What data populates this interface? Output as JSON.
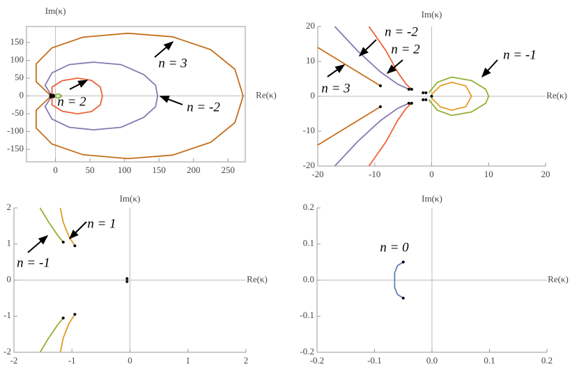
{
  "chart_data": [
    {
      "type": "line",
      "xlabel": "Re(κ)",
      "ylabel": "Im(κ)",
      "xlim": [
        -42,
        275
      ],
      "ylim": [
        -185,
        195
      ],
      "xticks": [
        0,
        50,
        100,
        150,
        200,
        250
      ],
      "yticks": [
        -150,
        -100,
        -50,
        0,
        50,
        100,
        150
      ],
      "annotations": [
        "n = 3",
        "n = 2",
        "n = -2"
      ],
      "series": [
        {
          "color": "#c56e1a",
          "x": [
            -8,
            -28,
            -28,
            -5,
            40,
            105,
            170,
            225,
            260,
            272,
            260,
            225,
            170,
            105,
            40,
            -5,
            -28,
            -28,
            -8
          ],
          "values": [
            3,
            40,
            90,
            135,
            165,
            176,
            166,
            130,
            75,
            0,
            -75,
            -130,
            -166,
            -176,
            -165,
            -135,
            -90,
            -40,
            -3
          ]
        },
        {
          "color": "#8778b3",
          "x": [
            -6,
            -15,
            -5,
            20,
            55,
            95,
            128,
            145,
            148,
            145,
            128,
            95,
            55,
            20,
            -5,
            -15,
            -6
          ],
          "values": [
            2,
            30,
            65,
            88,
            95,
            88,
            60,
            30,
            0,
            -30,
            -60,
            -88,
            -95,
            -88,
            -65,
            -30,
            -2
          ]
        },
        {
          "color": "#eb6235",
          "x": [
            -5,
            -5,
            10,
            32,
            52,
            65,
            68,
            65,
            52,
            32,
            10,
            -5,
            -5
          ],
          "values": [
            2,
            25,
            43,
            50,
            44,
            25,
            0,
            -25,
            -44,
            -50,
            -43,
            -25,
            -2
          ]
        },
        {
          "color": "#8fb032",
          "x": [
            -2,
            2,
            6,
            9,
            6,
            2,
            -2
          ],
          "values": [
            1,
            5,
            5,
            0,
            -5,
            -5,
            -1
          ]
        }
      ],
      "points": {
        "color": "#000000",
        "x": [
          -7,
          -7,
          -3,
          -3
        ],
        "values": [
          3,
          -3,
          2,
          -2
        ]
      }
    },
    {
      "type": "line",
      "xlabel": "Re(κ)",
      "ylabel": "Im(κ)",
      "xlim": [
        -20,
        20
      ],
      "ylim": [
        -20,
        20
      ],
      "xticks": [
        -20,
        -10,
        0,
        10,
        20
      ],
      "yticks": [
        -20,
        -10,
        0,
        10,
        20
      ],
      "annotations": [
        "n = -2",
        "n = 2",
        "n = 3",
        "n = -1"
      ],
      "series": [
        {
          "color": "#c56e1a",
          "x": [
            -20,
            -16,
            -12,
            -9,
            null,
            -20,
            -16,
            -12,
            -9
          ],
          "values": [
            14,
            10,
            6,
            3,
            null,
            -14,
            -10,
            -6,
            -3
          ]
        },
        {
          "color": "#8778b3",
          "x": [
            -17,
            -13,
            -9,
            -6,
            -4,
            null,
            -17,
            -13,
            -9,
            -6,
            -4
          ],
          "values": [
            20,
            13,
            7,
            3.5,
            2,
            null,
            -20,
            -13,
            -7,
            -3.5,
            -2
          ]
        },
        {
          "color": "#eb6235",
          "x": [
            -11,
            -8,
            -6,
            -4.5,
            -3.5,
            null,
            -11,
            -8,
            -6,
            -4.5,
            -3.5
          ],
          "values": [
            20,
            13,
            7,
            3.5,
            2,
            null,
            -20,
            -13,
            -7,
            -3.5,
            -2
          ]
        },
        {
          "color": "#8fb032",
          "x": [
            -0.5,
            1,
            3.5,
            7,
            9.5,
            10,
            9.5,
            7,
            3.5,
            1,
            -0.5
          ],
          "values": [
            1,
            4,
            5.5,
            4.5,
            2,
            0,
            -2,
            -4.5,
            -5.5,
            -4,
            -1
          ]
        },
        {
          "color": "#e19c24",
          "x": [
            0,
            1.5,
            3.5,
            6,
            7,
            6,
            3.5,
            1.5,
            0
          ],
          "values": [
            0.5,
            3,
            4,
            3,
            0,
            -3,
            -4,
            -3,
            -0.5
          ]
        }
      ],
      "points": {
        "color": "#000000",
        "x": [
          -9,
          -9,
          -4,
          -4,
          -3.5,
          -3.5,
          -1.5,
          -1,
          -1.5,
          -1,
          0
        ],
        "values": [
          3,
          -3,
          2,
          -2,
          2,
          -2,
          1,
          1,
          -1,
          -1,
          0
        ]
      }
    },
    {
      "type": "line",
      "xlabel": "Re(κ)",
      "ylabel": "Im(κ)",
      "xlim": [
        -2,
        2
      ],
      "ylim": [
        -2,
        2
      ],
      "xticks": [
        -2,
        -1,
        0,
        1,
        2
      ],
      "yticks": [
        -2,
        -1,
        0,
        1,
        2
      ],
      "annotations": [
        "n = 1",
        "n = -1"
      ],
      "series": [
        {
          "color": "#8fb032",
          "x": [
            -1.55,
            -1.4,
            -1.25,
            -1.15,
            null,
            -1.55,
            -1.4,
            -1.25,
            -1.15
          ],
          "values": [
            2,
            1.6,
            1.25,
            1.05,
            null,
            -2,
            -1.6,
            -1.25,
            -1.05
          ]
        },
        {
          "color": "#e19c24",
          "x": [
            -1.2,
            -1.15,
            -1.05,
            -0.95,
            null,
            -1.2,
            -1.15,
            -1.05,
            -0.95
          ],
          "values": [
            2,
            1.6,
            1.2,
            0.95,
            null,
            -2,
            -1.6,
            -1.2,
            -0.95
          ]
        }
      ],
      "points": {
        "color": "#000000",
        "x": [
          -1.15,
          -0.95,
          -1.15,
          -0.95,
          -0.05,
          -0.05
        ],
        "values": [
          1.05,
          0.95,
          -1.05,
          -0.95,
          0.04,
          -0.04
        ]
      }
    },
    {
      "type": "line",
      "xlabel": "Re(κ)",
      "ylabel": "Im(κ)",
      "xlim": [
        -0.2,
        0.2
      ],
      "ylim": [
        -0.2,
        0.2
      ],
      "xticks": [
        -0.2,
        -0.1,
        {
          "value": 0,
          "label": "0.0"
        },
        0.1,
        0.2
      ],
      "yticks": [
        -0.2,
        -0.1,
        {
          "value": 0,
          "label": "0.0"
        },
        0.1,
        0.2
      ],
      "annotations": [
        "n = 0"
      ],
      "series": [
        {
          "color": "#5e81b5",
          "x": [
            -0.05,
            -0.06,
            -0.065,
            -0.065,
            -0.065,
            -0.06,
            -0.05
          ],
          "values": [
            0.05,
            0.04,
            0.02,
            0,
            -0.02,
            -0.04,
            -0.05
          ]
        }
      ],
      "points": {
        "color": "#000000",
        "x": [
          -0.05,
          -0.05
        ],
        "values": [
          0.05,
          -0.05
        ]
      }
    }
  ]
}
